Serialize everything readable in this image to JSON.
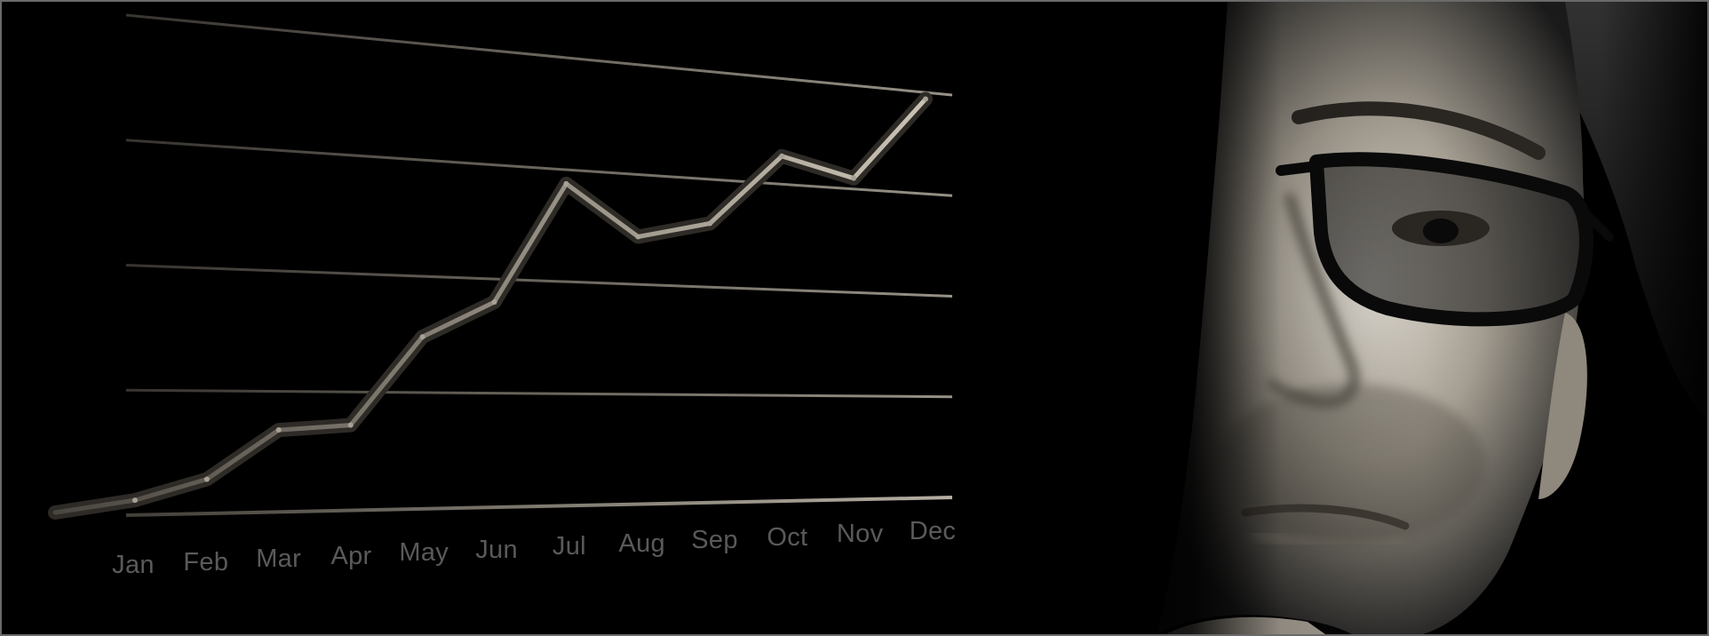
{
  "photo": {
    "subject": "portrait-with-glasses",
    "palette": {
      "background": "#000000",
      "frame": "#6a6a6a",
      "line": "#bdb6a8",
      "label": "#5a5a5a",
      "skin_highlight": "#d8d2c8"
    }
  },
  "chart_data": {
    "type": "line",
    "categories": [
      "Jan",
      "Feb",
      "Mar",
      "Apr",
      "May",
      "Jun",
      "Jul",
      "Aug",
      "Sep",
      "Oct",
      "Nov",
      "Dec"
    ],
    "series": [
      {
        "values": [
          0.3,
          0.7,
          1.7,
          1.8,
          3.7,
          4.5,
          7.2,
          6.1,
          6.5,
          8.2,
          7.8,
          9.9
        ]
      }
    ],
    "ylim": [
      0,
      10
    ],
    "grid": true
  }
}
